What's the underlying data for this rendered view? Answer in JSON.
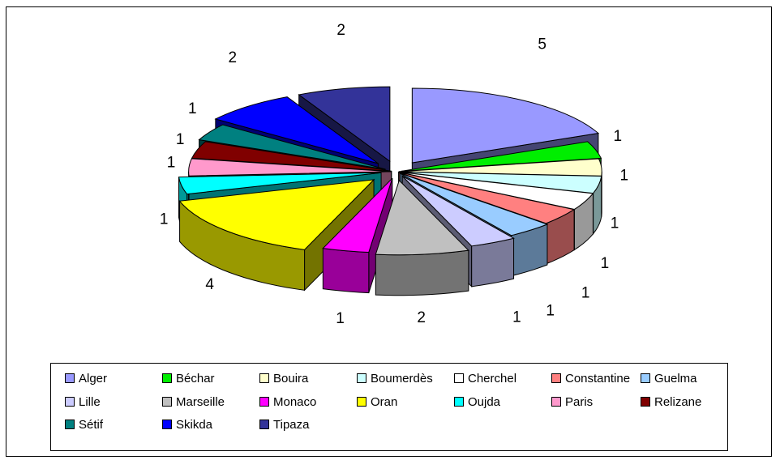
{
  "chart_data": {
    "type": "pie",
    "style": "3d-exploded",
    "title": "",
    "categories": [
      "Alger",
      "Béchar",
      "Bouira",
      "Boumerdès",
      "Cherchel",
      "Constantine",
      "Guelma",
      "Lille",
      "Marseille",
      "Monaco",
      "Oran",
      "Oujda",
      "Paris",
      "Relizane",
      "Sétif",
      "Skikda",
      "Tipaza"
    ],
    "values": [
      5,
      1,
      1,
      1,
      1,
      1,
      1,
      1,
      2,
      1,
      4,
      1,
      1,
      1,
      1,
      2,
      2
    ],
    "colors": [
      "#9999ff",
      "#00ee00",
      "#ffffcc",
      "#ccffff",
      "#ffffff",
      "#ff8080",
      "#99ccff",
      "#ccccff",
      "#c0c0c0",
      "#ff00ff",
      "#ffff00",
      "#00ffff",
      "#ff99cc",
      "#800000",
      "#008080",
      "#0000ff",
      "#333399"
    ],
    "data_labels": [
      "5",
      "1",
      "1",
      "1",
      "1",
      "1",
      "1",
      "1",
      "2",
      "1",
      "4",
      "1",
      "1",
      "1",
      "1",
      "2",
      "2"
    ],
    "legend_position": "bottom"
  }
}
